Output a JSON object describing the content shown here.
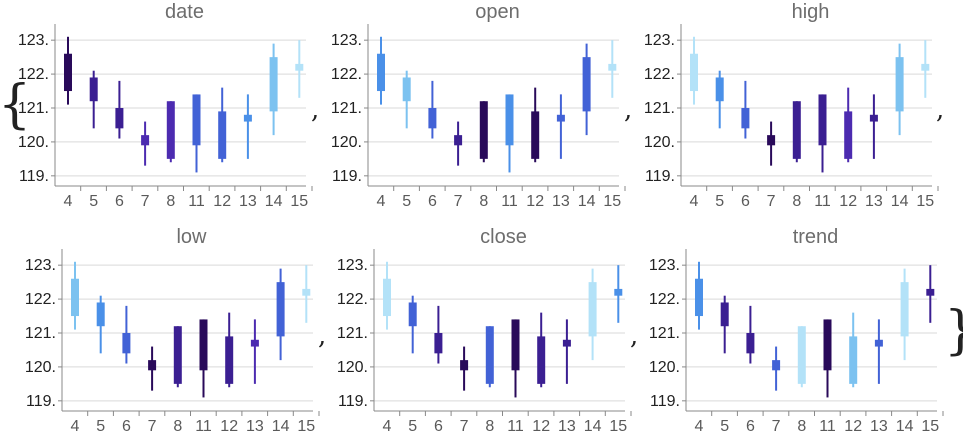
{
  "separator": ",",
  "brace_open": "{",
  "brace_close": "}",
  "colors": {
    "c1": "#290a5a",
    "c2": "#3b1f92",
    "c3": "#4c2bb0",
    "c4": "#4262d6",
    "c5": "#4a90e8",
    "c6": "#7cc2f0",
    "c7": "#b3e2f8"
  },
  "chart_data": [
    {
      "type": "candlestick",
      "title": "date",
      "categories": [
        "4",
        "5",
        "6",
        "7",
        "8",
        "11",
        "12",
        "13",
        "14",
        "15"
      ],
      "y_ticks": [
        "119.",
        "120.",
        "121.",
        "122.",
        "123."
      ],
      "ylim": [
        118.7,
        123.3
      ],
      "grid": true,
      "series": [
        {
          "x": "4",
          "open": 121.5,
          "close": 122.6,
          "high": 123.1,
          "low": 121.1,
          "color": "#290a5a"
        },
        {
          "x": "5",
          "open": 121.2,
          "close": 121.9,
          "high": 122.1,
          "low": 120.4,
          "color": "#3b1f92"
        },
        {
          "x": "6",
          "open": 120.4,
          "close": 121.0,
          "high": 121.8,
          "low": 120.1,
          "color": "#3b1f92"
        },
        {
          "x": "7",
          "open": 119.9,
          "close": 120.2,
          "high": 120.6,
          "low": 119.3,
          "color": "#4c2bb0"
        },
        {
          "x": "8",
          "open": 119.5,
          "close": 121.2,
          "high": 121.2,
          "low": 119.4,
          "color": "#4c2bb0"
        },
        {
          "x": "11",
          "open": 119.9,
          "close": 121.4,
          "high": 121.4,
          "low": 119.1,
          "color": "#4262d6"
        },
        {
          "x": "12",
          "open": 119.5,
          "close": 120.9,
          "high": 121.6,
          "low": 119.4,
          "color": "#4262d6"
        },
        {
          "x": "13",
          "open": 120.6,
          "close": 120.8,
          "high": 121.4,
          "low": 119.5,
          "color": "#4a90e8"
        },
        {
          "x": "14",
          "open": 120.9,
          "close": 122.5,
          "high": 122.9,
          "low": 120.2,
          "color": "#7cc2f0"
        },
        {
          "x": "15",
          "open": 122.1,
          "close": 122.3,
          "high": 123.0,
          "low": 121.3,
          "color": "#b3e2f8"
        }
      ]
    },
    {
      "type": "candlestick",
      "title": "open",
      "categories": [
        "4",
        "5",
        "6",
        "7",
        "8",
        "11",
        "12",
        "13",
        "14",
        "15"
      ],
      "y_ticks": [
        "119.",
        "120.",
        "121.",
        "122.",
        "123."
      ],
      "ylim": [
        118.7,
        123.3
      ],
      "grid": true,
      "series": [
        {
          "x": "4",
          "open": 121.5,
          "close": 122.6,
          "high": 123.1,
          "low": 121.1,
          "color": "#4a90e8"
        },
        {
          "x": "5",
          "open": 121.2,
          "close": 121.9,
          "high": 122.1,
          "low": 120.4,
          "color": "#7cc2f0"
        },
        {
          "x": "6",
          "open": 120.4,
          "close": 121.0,
          "high": 121.8,
          "low": 120.1,
          "color": "#4262d6"
        },
        {
          "x": "7",
          "open": 119.9,
          "close": 120.2,
          "high": 120.6,
          "low": 119.3,
          "color": "#3b1f92"
        },
        {
          "x": "8",
          "open": 119.5,
          "close": 121.2,
          "high": 121.2,
          "low": 119.4,
          "color": "#290a5a"
        },
        {
          "x": "11",
          "open": 119.9,
          "close": 121.4,
          "high": 121.4,
          "low": 119.1,
          "color": "#4a90e8"
        },
        {
          "x": "12",
          "open": 119.5,
          "close": 120.9,
          "high": 121.6,
          "low": 119.4,
          "color": "#290a5a"
        },
        {
          "x": "13",
          "open": 120.6,
          "close": 120.8,
          "high": 121.4,
          "low": 119.5,
          "color": "#4262d6"
        },
        {
          "x": "14",
          "open": 120.9,
          "close": 122.5,
          "high": 122.9,
          "low": 120.2,
          "color": "#4262d6"
        },
        {
          "x": "15",
          "open": 122.1,
          "close": 122.3,
          "high": 123.0,
          "low": 121.3,
          "color": "#b3e2f8"
        }
      ]
    },
    {
      "type": "candlestick",
      "title": "high",
      "categories": [
        "4",
        "5",
        "6",
        "7",
        "8",
        "11",
        "12",
        "13",
        "14",
        "15"
      ],
      "y_ticks": [
        "119.",
        "120.",
        "121.",
        "122.",
        "123."
      ],
      "ylim": [
        118.7,
        123.3
      ],
      "grid": true,
      "series": [
        {
          "x": "4",
          "open": 121.5,
          "close": 122.6,
          "high": 123.1,
          "low": 121.1,
          "color": "#b3e2f8"
        },
        {
          "x": "5",
          "open": 121.2,
          "close": 121.9,
          "high": 122.1,
          "low": 120.4,
          "color": "#4a90e8"
        },
        {
          "x": "6",
          "open": 120.4,
          "close": 121.0,
          "high": 121.8,
          "low": 120.1,
          "color": "#4262d6"
        },
        {
          "x": "7",
          "open": 119.9,
          "close": 120.2,
          "high": 120.6,
          "low": 119.3,
          "color": "#290a5a"
        },
        {
          "x": "8",
          "open": 119.5,
          "close": 121.2,
          "high": 121.2,
          "low": 119.4,
          "color": "#3b1f92"
        },
        {
          "x": "11",
          "open": 119.9,
          "close": 121.4,
          "high": 121.4,
          "low": 119.1,
          "color": "#3b1f92"
        },
        {
          "x": "12",
          "open": 119.5,
          "close": 120.9,
          "high": 121.6,
          "low": 119.4,
          "color": "#4c2bb0"
        },
        {
          "x": "13",
          "open": 120.6,
          "close": 120.8,
          "high": 121.4,
          "low": 119.5,
          "color": "#3b1f92"
        },
        {
          "x": "14",
          "open": 120.9,
          "close": 122.5,
          "high": 122.9,
          "low": 120.2,
          "color": "#7cc2f0"
        },
        {
          "x": "15",
          "open": 122.1,
          "close": 122.3,
          "high": 123.0,
          "low": 121.3,
          "color": "#b3e2f8"
        }
      ]
    },
    {
      "type": "candlestick",
      "title": "low",
      "categories": [
        "4",
        "5",
        "6",
        "7",
        "8",
        "11",
        "12",
        "13",
        "14",
        "15"
      ],
      "y_ticks": [
        "119.",
        "120.",
        "121.",
        "122.",
        "123."
      ],
      "ylim": [
        118.7,
        123.3
      ],
      "grid": true,
      "series": [
        {
          "x": "4",
          "open": 121.5,
          "close": 122.6,
          "high": 123.1,
          "low": 121.1,
          "color": "#7cc2f0"
        },
        {
          "x": "5",
          "open": 121.2,
          "close": 121.9,
          "high": 122.1,
          "low": 120.4,
          "color": "#4a90e8"
        },
        {
          "x": "6",
          "open": 120.4,
          "close": 121.0,
          "high": 121.8,
          "low": 120.1,
          "color": "#4262d6"
        },
        {
          "x": "7",
          "open": 119.9,
          "close": 120.2,
          "high": 120.6,
          "low": 119.3,
          "color": "#290a5a"
        },
        {
          "x": "8",
          "open": 119.5,
          "close": 121.2,
          "high": 121.2,
          "low": 119.4,
          "color": "#3b1f92"
        },
        {
          "x": "11",
          "open": 119.9,
          "close": 121.4,
          "high": 121.4,
          "low": 119.1,
          "color": "#290a5a"
        },
        {
          "x": "12",
          "open": 119.5,
          "close": 120.9,
          "high": 121.6,
          "low": 119.4,
          "color": "#3b1f92"
        },
        {
          "x": "13",
          "open": 120.6,
          "close": 120.8,
          "high": 121.4,
          "low": 119.5,
          "color": "#4c2bb0"
        },
        {
          "x": "14",
          "open": 120.9,
          "close": 122.5,
          "high": 122.9,
          "low": 120.2,
          "color": "#4262d6"
        },
        {
          "x": "15",
          "open": 122.1,
          "close": 122.3,
          "high": 123.0,
          "low": 121.3,
          "color": "#b3e2f8"
        }
      ]
    },
    {
      "type": "candlestick",
      "title": "close",
      "categories": [
        "4",
        "5",
        "6",
        "7",
        "8",
        "11",
        "12",
        "13",
        "14",
        "15"
      ],
      "y_ticks": [
        "119.",
        "120.",
        "121.",
        "122.",
        "123."
      ],
      "ylim": [
        118.7,
        123.3
      ],
      "grid": true,
      "series": [
        {
          "x": "4",
          "open": 121.5,
          "close": 122.6,
          "high": 123.1,
          "low": 121.1,
          "color": "#b3e2f8"
        },
        {
          "x": "5",
          "open": 121.2,
          "close": 121.9,
          "high": 122.1,
          "low": 120.4,
          "color": "#4262d6"
        },
        {
          "x": "6",
          "open": 120.4,
          "close": 121.0,
          "high": 121.8,
          "low": 120.1,
          "color": "#3b1f92"
        },
        {
          "x": "7",
          "open": 119.9,
          "close": 120.2,
          "high": 120.6,
          "low": 119.3,
          "color": "#290a5a"
        },
        {
          "x": "8",
          "open": 119.5,
          "close": 121.2,
          "high": 121.2,
          "low": 119.4,
          "color": "#4262d6"
        },
        {
          "x": "11",
          "open": 119.9,
          "close": 121.4,
          "high": 121.4,
          "low": 119.1,
          "color": "#290a5a"
        },
        {
          "x": "12",
          "open": 119.5,
          "close": 120.9,
          "high": 121.6,
          "low": 119.4,
          "color": "#3b1f92"
        },
        {
          "x": "13",
          "open": 120.6,
          "close": 120.8,
          "high": 121.4,
          "low": 119.5,
          "color": "#3b1f92"
        },
        {
          "x": "14",
          "open": 120.9,
          "close": 122.5,
          "high": 122.9,
          "low": 120.2,
          "color": "#b3e2f8"
        },
        {
          "x": "15",
          "open": 122.1,
          "close": 122.3,
          "high": 123.0,
          "low": 121.3,
          "color": "#4a90e8"
        }
      ]
    },
    {
      "type": "candlestick",
      "title": "trend",
      "categories": [
        "4",
        "5",
        "6",
        "7",
        "8",
        "11",
        "12",
        "13",
        "14",
        "15"
      ],
      "y_ticks": [
        "119.",
        "120.",
        "121.",
        "122.",
        "123."
      ],
      "ylim": [
        118.7,
        123.3
      ],
      "grid": true,
      "series": [
        {
          "x": "4",
          "open": 121.5,
          "close": 122.6,
          "high": 123.1,
          "low": 121.1,
          "color": "#4a90e8"
        },
        {
          "x": "5",
          "open": 121.2,
          "close": 121.9,
          "high": 122.1,
          "low": 120.4,
          "color": "#3b1f92"
        },
        {
          "x": "6",
          "open": 120.4,
          "close": 121.0,
          "high": 121.8,
          "low": 120.1,
          "color": "#3b1f92"
        },
        {
          "x": "7",
          "open": 119.9,
          "close": 120.2,
          "high": 120.6,
          "low": 119.3,
          "color": "#4262d6"
        },
        {
          "x": "8",
          "open": 119.5,
          "close": 121.2,
          "high": 121.2,
          "low": 119.4,
          "color": "#b3e2f8"
        },
        {
          "x": "11",
          "open": 119.9,
          "close": 121.4,
          "high": 121.4,
          "low": 119.1,
          "color": "#290a5a"
        },
        {
          "x": "12",
          "open": 119.5,
          "close": 120.9,
          "high": 121.6,
          "low": 119.4,
          "color": "#7cc2f0"
        },
        {
          "x": "13",
          "open": 120.6,
          "close": 120.8,
          "high": 121.4,
          "low": 119.5,
          "color": "#4262d6"
        },
        {
          "x": "14",
          "open": 120.9,
          "close": 122.5,
          "high": 122.9,
          "low": 120.2,
          "color": "#b3e2f8"
        },
        {
          "x": "15",
          "open": 122.1,
          "close": 122.3,
          "high": 123.0,
          "low": 121.3,
          "color": "#3b1f92"
        }
      ]
    }
  ]
}
